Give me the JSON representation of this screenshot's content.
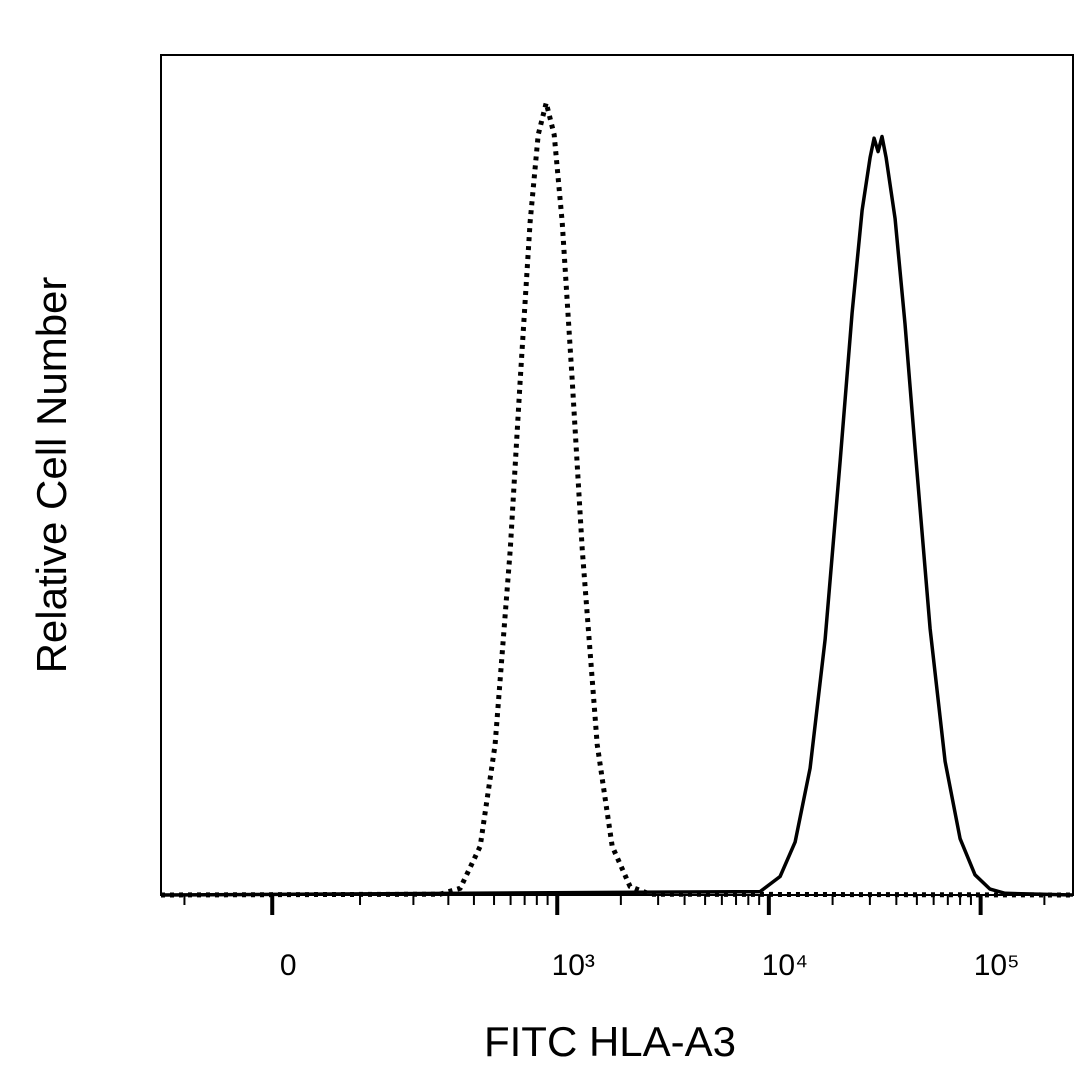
{
  "chart_data": {
    "type": "line",
    "xlabel": "FITC HLA-A3",
    "ylabel": "Relative Cell Number",
    "xscale": "biexponential",
    "xlim": [
      -138,
      273000
    ],
    "ylim": [
      0,
      100
    ],
    "xticks": [
      0,
      {
        "value": 1000,
        "label": "10³"
      },
      {
        "value": 10000,
        "label": "10⁴"
      },
      {
        "value": 100000,
        "label": "10⁵"
      }
    ],
    "xminorticks": [
      -100,
      100,
      200,
      300,
      400,
      500,
      600,
      700,
      800,
      900,
      2000,
      3000,
      4000,
      5000,
      6000,
      7000,
      8000,
      9000,
      20000,
      30000,
      40000,
      50000,
      60000,
      70000,
      80000,
      90000,
      200000
    ],
    "series": [
      {
        "color": "#000000",
        "dash": "dotted",
        "x": [
          -138,
          273,
          343,
          429,
          506,
          598,
          667,
          743,
          812,
          886,
          967,
          1055,
          1177,
          1313,
          1546,
          1820,
          2212,
          2752,
          273000
        ],
        "values": [
          0,
          0.1,
          0.8,
          5.8,
          17.9,
          41.2,
          61.3,
          80.1,
          90.5,
          94.3,
          90.5,
          80.1,
          61.3,
          41.2,
          17.9,
          5.8,
          1.0,
          0.1,
          0
        ]
      },
      {
        "color": "#000000",
        "dash": "solid",
        "x": [
          -138,
          9094,
          11307,
          13307,
          15660,
          18430,
          21697,
          24711,
          27555,
          30063,
          31389,
          32796,
          34240,
          35779,
          39463,
          43968,
          49026,
          57705,
          67928,
          79959,
          94106,
          110780,
          130400,
          273000
        ],
        "values": [
          0,
          0.4,
          2.2,
          6.3,
          15.1,
          30.4,
          51.6,
          69.3,
          81.5,
          87.8,
          90.1,
          88.5,
          90.3,
          87.8,
          80.5,
          68.0,
          53.1,
          31.7,
          15.9,
          6.7,
          2.4,
          0.7,
          0.2,
          0
        ]
      }
    ]
  }
}
